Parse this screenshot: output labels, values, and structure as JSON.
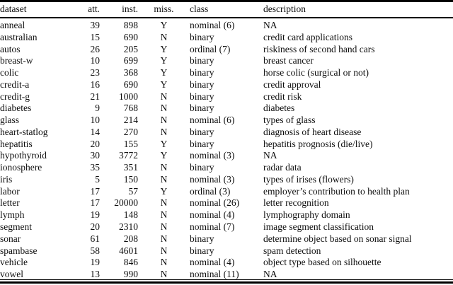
{
  "table": {
    "columns": [
      {
        "key": "dataset",
        "label": "dataset"
      },
      {
        "key": "att",
        "label": "att."
      },
      {
        "key": "inst",
        "label": "inst."
      },
      {
        "key": "miss",
        "label": "miss."
      },
      {
        "key": "class",
        "label": "class"
      },
      {
        "key": "description",
        "label": "description"
      }
    ],
    "rows": [
      [
        "anneal",
        "39",
        "898",
        "Y",
        "nominal (6)",
        "NA"
      ],
      [
        "australian",
        "15",
        "690",
        "N",
        "binary",
        "credit card applications"
      ],
      [
        "autos",
        "26",
        "205",
        "Y",
        "ordinal (7)",
        "riskiness of second hand cars"
      ],
      [
        "breast-w",
        "10",
        "699",
        "Y",
        "binary",
        "breast cancer"
      ],
      [
        "colic",
        "23",
        "368",
        "Y",
        "binary",
        "horse colic (surgical or not)"
      ],
      [
        "credit-a",
        "16",
        "690",
        "Y",
        "binary",
        "credit approval"
      ],
      [
        "credit-g",
        "21",
        "1000",
        "N",
        "binary",
        "credit risk"
      ],
      [
        "diabetes",
        "9",
        "768",
        "N",
        "binary",
        "diabetes"
      ],
      [
        "glass",
        "10",
        "214",
        "N",
        "nominal (6)",
        "types of glass"
      ],
      [
        "heart-statlog",
        "14",
        "270",
        "N",
        "binary",
        "diagnosis of heart disease"
      ],
      [
        "hepatitis",
        "20",
        "155",
        "Y",
        "binary",
        "hepatitis prognosis (die/live)"
      ],
      [
        "hypothyroid",
        "30",
        "3772",
        "Y",
        "nominal (3)",
        "NA"
      ],
      [
        "ionosphere",
        "35",
        "351",
        "N",
        "binary",
        "radar data"
      ],
      [
        "iris",
        "5",
        "150",
        "N",
        "nominal (3)",
        "types of irises (flowers)"
      ],
      [
        "labor",
        "17",
        "57",
        "Y",
        "ordinal (3)",
        "employer’s contribution to health plan"
      ],
      [
        "letter",
        "17",
        "20000",
        "N",
        "nominal (26)",
        "letter recognition"
      ],
      [
        "lymph",
        "19",
        "148",
        "N",
        "nominal (4)",
        "lymphography domain"
      ],
      [
        "segment",
        "20",
        "2310",
        "N",
        "nominal (7)",
        "image segment classification"
      ],
      [
        "sonar",
        "61",
        "208",
        "N",
        "binary",
        "determine object based on sonar signal"
      ],
      [
        "spambase",
        "58",
        "4601",
        "N",
        "binary",
        "spam detection"
      ],
      [
        "vehicle",
        "19",
        "846",
        "N",
        "nominal (4)",
        "object type based on silhouette"
      ],
      [
        "vowel",
        "13",
        "990",
        "N",
        "nominal (11)",
        "NA"
      ]
    ],
    "rules": {
      "top_color": "#000000",
      "bottom_color": "#000000",
      "header_separator_color": "#000000"
    }
  }
}
